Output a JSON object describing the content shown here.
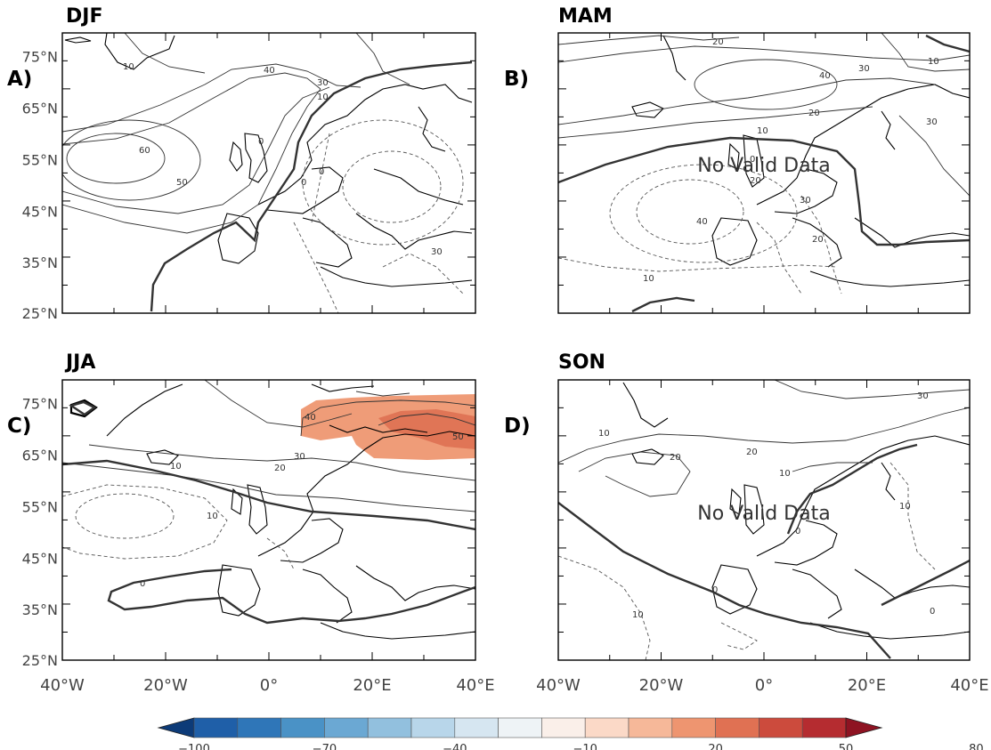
{
  "panels": [
    {
      "title": "DJF",
      "letter": "A)",
      "no_valid_data": "",
      "contour_labels": [
        "10",
        "40",
        "30",
        "10",
        "0",
        "60",
        "50",
        "0",
        "0",
        "30"
      ]
    },
    {
      "title": "MAM",
      "letter": "B)",
      "no_valid_data": "No Valid Data",
      "contour_labels": [
        "20",
        "10",
        "30",
        "40",
        "20",
        "10",
        "30",
        "0",
        "20",
        "40",
        "10",
        "20",
        "30"
      ]
    },
    {
      "title": "JJA",
      "letter": "C)",
      "no_valid_data": "",
      "contour_labels": [
        "40",
        "50",
        "30",
        "20",
        "10",
        "10",
        "0"
      ]
    },
    {
      "title": "SON",
      "letter": "D)",
      "no_valid_data": "No Valid Data",
      "contour_labels": [
        "30",
        "10",
        "20",
        "20",
        "10",
        "10",
        "0",
        "0",
        "10",
        "0"
      ]
    }
  ],
  "lat_labels": [
    "75°N",
    "65°N",
    "55°N",
    "45°N",
    "35°N",
    "25°N"
  ],
  "lon_labels": [
    "40°W",
    "20°W",
    "0°",
    "20°E",
    "40°E"
  ],
  "colorbar": {
    "labels": [
      "-100",
      "-70",
      "-40",
      "-10",
      "20",
      "50",
      "80"
    ],
    "colors": [
      "#0d3b78",
      "#1f5fa8",
      "#2f76b8",
      "#4a92c6",
      "#6ba8d3",
      "#92c0de",
      "#b8d6ea",
      "#d6e6f1",
      "#eef3f6",
      "#faefe9",
      "#fbd9c7",
      "#f6b899",
      "#ee9570",
      "#e07153",
      "#cc4b3d",
      "#b52c30",
      "#8e1322"
    ]
  }
}
